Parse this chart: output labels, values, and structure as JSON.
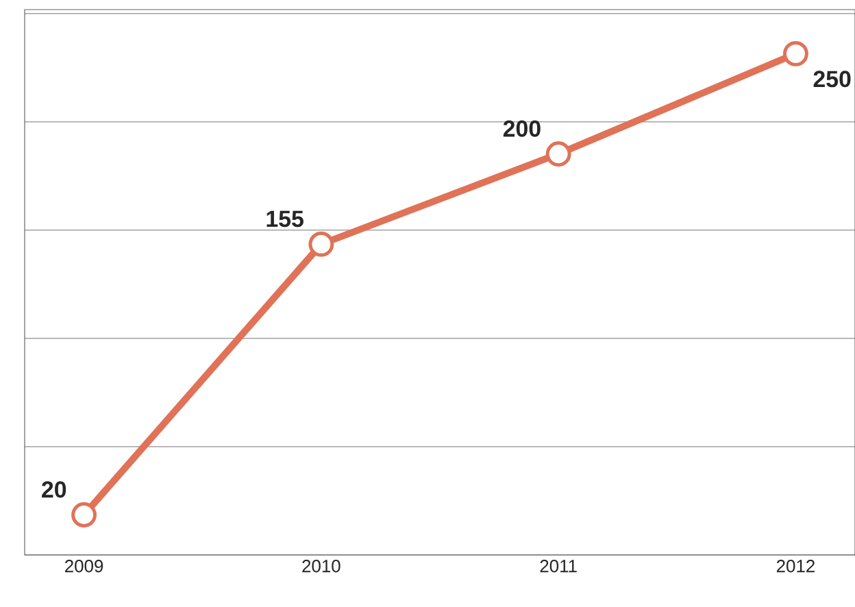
{
  "chart_data": {
    "type": "line",
    "categories": [
      "2009",
      "2010",
      "2011",
      "2012"
    ],
    "series": [
      {
        "color": "#e07258",
        "values": [
          20,
          155,
          200,
          250
        ]
      }
    ],
    "data_labels": true,
    "marker": "circle",
    "line_style": "solid",
    "grid": "y",
    "tick_labels": "x",
    "ylim": [
      0,
      272
    ],
    "yticks": [
      {
        "value": 0,
        "label": null
      },
      {
        "value": 54,
        "label": null
      },
      {
        "value": 108,
        "label": null
      },
      {
        "value": 162,
        "label": null
      },
      {
        "value": 216,
        "label": null
      },
      {
        "value": 270,
        "label": null
      }
    ]
  }
}
